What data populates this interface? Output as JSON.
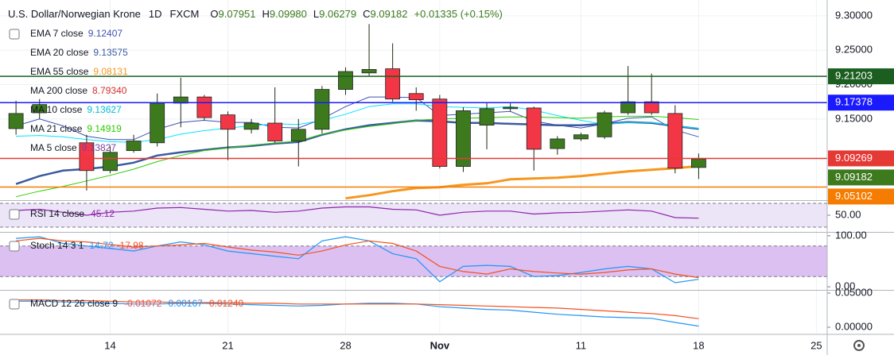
{
  "chart_data": [
    {
      "type": "candlestick",
      "header": {
        "symbol": "U.S. Dollar/Norwegian Krone",
        "interval": "1D",
        "source": "FXCM",
        "ohlc": [
          {
            "key": "O",
            "value": "9.07951"
          },
          {
            "key": "H",
            "value": "9.09980"
          },
          {
            "key": "L",
            "value": "9.06279"
          },
          {
            "key": "C",
            "value": "9.09182"
          }
        ],
        "change": "+0.01335 (+0.15%)"
      },
      "xlim": [
        -0.68,
        34.46
      ],
      "xticks": [
        {
          "value": 4,
          "label": "14"
        },
        {
          "value": 9,
          "label": "21"
        },
        {
          "value": 14,
          "label": "28"
        },
        {
          "value": 18,
          "label": "Nov"
        },
        {
          "value": 24,
          "label": "11"
        },
        {
          "value": 29,
          "label": "18"
        },
        {
          "value": 34,
          "label": "25"
        }
      ],
      "ylim": [
        9.032,
        9.323
      ],
      "yticks": [
        {
          "value": 9.15,
          "label": "9.15000"
        },
        {
          "value": 9.2,
          "label": "9.20000"
        },
        {
          "value": 9.25,
          "label": "9.25000"
        },
        {
          "value": 9.3,
          "label": "9.30000"
        }
      ],
      "grid": true,
      "up_color": "#3d7a1e",
      "down_color": "#f23645",
      "open": [
        9.136,
        9.159,
        null,
        9.1154,
        9.075,
        9.104,
        9.1154,
        9.173,
        9.182,
        9.156,
        9.135,
        9.144,
        9.118,
        9.135,
        9.193,
        9.217,
        9.223,
        9.187,
        9.179,
        9.081,
        9.141,
        9.165,
        9.166,
        9.107,
        9.121,
        9.124,
        9.159,
        9.175,
        9.158,
        9.07951
      ],
      "high": [
        9.1765,
        9.179,
        null,
        9.127,
        9.11,
        9.127,
        9.187,
        9.21,
        9.185,
        9.161,
        9.15,
        9.196,
        9.15,
        9.198,
        9.225,
        9.288,
        9.26,
        9.196,
        9.185,
        9.167,
        9.173,
        9.173,
        9.168,
        9.125,
        9.13,
        9.162,
        9.227,
        9.216,
        9.17,
        9.0998
      ],
      "low": [
        9.127,
        9.15,
        null,
        9.046,
        9.071,
        9.101,
        9.11,
        9.138,
        9.148,
        9.09,
        9.129,
        9.115,
        9.081,
        9.129,
        9.185,
        9.213,
        9.175,
        9.162,
        9.078,
        9.073,
        9.106,
        9.161,
        9.075,
        9.098,
        9.118,
        9.121,
        9.156,
        9.156,
        9.071,
        9.06279
      ],
      "close": [
        9.158,
        9.171,
        null,
        9.075,
        9.1015,
        9.118,
        9.173,
        9.182,
        9.152,
        9.135,
        9.144,
        9.118,
        9.135,
        9.193,
        9.219,
        9.222,
        9.179,
        9.178,
        9.081,
        9.162,
        9.165,
        9.167,
        9.106,
        9.121,
        9.127,
        9.159,
        9.175,
        9.159,
        9.0785,
        9.09182
      ],
      "series": [
        {
          "name": "EMA 7 close",
          "value_label": "9.12407",
          "color": "#3f51b5",
          "width": 1,
          "values": [
            9.14,
            9.15,
            9.14,
            9.125,
            9.12,
            9.12,
            9.135,
            9.145,
            9.148,
            9.145,
            9.145,
            9.138,
            9.137,
            9.15,
            9.168,
            9.182,
            9.182,
            9.181,
            9.155,
            9.157,
            9.159,
            9.161,
            9.147,
            9.141,
            9.137,
            9.143,
            9.151,
            9.153,
            9.134,
            9.12407
          ]
        },
        {
          "name": "EMA 20 close",
          "value_label": "9.13575",
          "color": "#3a5ba0",
          "width": 2.5,
          "values": [
            9.0554,
            9.067,
            9.075,
            9.0773,
            9.0808,
            9.0865,
            9.0969,
            9.1015,
            9.105,
            9.1085,
            9.1108,
            9.1142,
            9.1165,
            9.127,
            9.135,
            9.1408,
            9.1442,
            9.1477,
            9.1465,
            9.1442,
            9.1442,
            9.143,
            9.1419,
            9.1408,
            9.1408,
            9.143,
            9.1454,
            9.1442,
            9.1396,
            9.13575
          ]
        },
        {
          "name": "EMA 55 close",
          "value_label": "9.08131",
          "color": "#f7961e",
          "width": 3,
          "values": [
            null,
            null,
            null,
            null,
            null,
            null,
            null,
            null,
            null,
            null,
            null,
            null,
            null,
            null,
            9.0346,
            9.0392,
            9.045,
            9.0496,
            9.0508,
            9.0542,
            9.0565,
            9.0623,
            9.0635,
            9.0646,
            9.067,
            9.0704,
            9.0739,
            9.0762,
            9.0785,
            9.08131
          ]
        },
        {
          "name": "MA 200 close",
          "value_label": "8.79340",
          "color": "#d32f2f"
        },
        {
          "name": "MA 10 close",
          "value_label": "9.13627",
          "color": "#00e5ff",
          "width": 1,
          "values": [
            9.125,
            9.126,
            9.124,
            9.12,
            9.117,
            9.116,
            9.12,
            9.128,
            9.133,
            9.137,
            9.14,
            9.143,
            9.142,
            9.148,
            9.157,
            9.168,
            9.172,
            9.172,
            9.168,
            9.167,
            9.166,
            9.168,
            9.163,
            9.155,
            9.148,
            9.142,
            9.145,
            9.145,
            9.14,
            9.13627
          ]
        },
        {
          "name": "MA 21 close",
          "value_label": "9.14919",
          "color": "#2ecc00",
          "width": 1,
          "values": [
            9.037,
            9.045,
            9.052,
            9.06,
            9.068,
            9.077,
            9.088,
            9.097,
            9.104,
            9.108,
            9.112,
            9.115,
            9.118,
            9.128,
            9.134,
            9.139,
            9.143,
            9.148,
            9.15,
            9.151,
            9.152,
            9.153,
            9.153,
            9.152,
            9.151,
            9.153,
            9.154,
            9.154,
            9.152,
            9.14919
          ]
        },
        {
          "name": "MA 5 close",
          "value_label": "9.13827",
          "color": "#7b3fa0"
        }
      ],
      "price_lines": [
        {
          "value": 9.21203,
          "color": "#1b5e20"
        },
        {
          "value": 9.17378,
          "color": "#1a1aff"
        },
        {
          "value": 9.09269,
          "color": "#e53935"
        },
        {
          "value": 9.09182,
          "color": "#3d7a1e",
          "line": false
        },
        {
          "value": 9.05102,
          "color": "#f57c00"
        }
      ]
    },
    {
      "type": "line",
      "title": "RSI 14 close",
      "ylim": [
        22,
        74
      ],
      "yticks": [
        {
          "value": 50,
          "label": "50.00"
        }
      ],
      "bands": [
        70,
        30
      ],
      "band_color": "#ece4f7",
      "series": [
        {
          "value_label": "45.12",
          "color": "#8e24aa",
          "values": [
            58,
            60,
            55,
            50,
            55,
            57,
            62,
            63,
            60,
            57,
            58,
            55,
            57,
            62,
            64,
            64,
            60,
            59,
            50,
            55,
            57,
            57,
            52,
            54,
            55,
            57,
            59,
            57,
            46,
            45.12
          ]
        }
      ]
    },
    {
      "type": "line",
      "title": "Stoch 14 3 1",
      "ylim": [
        -6,
        106
      ],
      "yticks": [
        {
          "value": 100,
          "label": "100.00"
        },
        {
          "value": 0,
          "label": "0.00"
        }
      ],
      "bands": [
        80,
        20
      ],
      "band_color": "#dcc0f2",
      "series": [
        {
          "value_label": "14.72",
          "color": "#2196f3",
          "values": [
            95,
            98,
            85,
            80,
            75,
            70,
            80,
            88,
            82,
            70,
            65,
            60,
            55,
            90,
            98,
            90,
            65,
            55,
            10,
            40,
            42,
            40,
            20,
            22,
            28,
            35,
            40,
            35,
            8,
            14.72
          ]
        },
        {
          "value_label": "17.98",
          "color": "#f4511e",
          "values": [
            90,
            95,
            90,
            88,
            83,
            78,
            80,
            82,
            85,
            78,
            72,
            68,
            62,
            70,
            82,
            90,
            85,
            70,
            40,
            30,
            25,
            35,
            30,
            27,
            25,
            28,
            33,
            35,
            25,
            17.98
          ]
        }
      ]
    },
    {
      "type": "line",
      "title": "MACD 12 26 close 9",
      "ylim": [
        -0.0093,
        0.0535
      ],
      "yticks": [
        {
          "value": 0.05,
          "label": "0.05000"
        },
        {
          "value": 0,
          "label": "0.00000"
        }
      ],
      "series": [
        {
          "value_label": "-0.01072",
          "color": "#ef5350"
        },
        {
          "value_label": "0.00167",
          "color": "#2196f3",
          "values": [
            0.038,
            0.038,
            0.037,
            0.036,
            0.035,
            0.034,
            0.034,
            0.035,
            0.035,
            0.034,
            0.033,
            0.032,
            0.031,
            0.032,
            0.034,
            0.035,
            0.035,
            0.034,
            0.03,
            0.028,
            0.026,
            0.025,
            0.022,
            0.019,
            0.017,
            0.015,
            0.014,
            0.013,
            0.007,
            0.00167
          ]
        },
        {
          "value_label": "0.01240",
          "color": "#f4511e",
          "values": [
            0.04,
            0.04,
            0.039,
            0.039,
            0.038,
            0.037,
            0.037,
            0.036,
            0.036,
            0.036,
            0.035,
            0.035,
            0.034,
            0.034,
            0.034,
            0.034,
            0.034,
            0.034,
            0.033,
            0.032,
            0.031,
            0.03,
            0.029,
            0.028,
            0.026,
            0.024,
            0.022,
            0.02,
            0.017,
            0.0124
          ]
        }
      ]
    }
  ]
}
